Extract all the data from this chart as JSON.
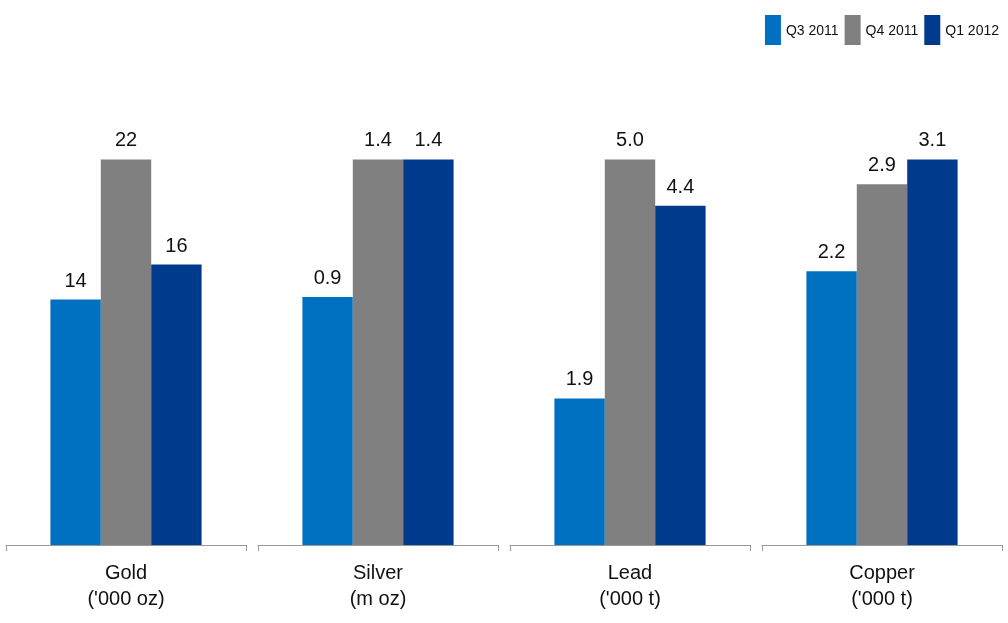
{
  "chart_data": [
    {
      "type": "bar",
      "categories": [
        "Gold\n('000 oz)"
      ],
      "data_labels": true,
      "series": [
        {
          "color": "#0070c0",
          "values": [
            14
          ],
          "value_labels": [
            "14"
          ]
        },
        {
          "color": "#808080",
          "values": [
            22
          ],
          "value_labels": [
            "22"
          ]
        },
        {
          "color": "#003a8c",
          "values": [
            16
          ],
          "value_labels": [
            "16"
          ]
        }
      ]
    },
    {
      "type": "bar",
      "categories": [
        "Silver\n(m oz)"
      ],
      "data_labels": true,
      "series": [
        {
          "color": "#0070c0",
          "values": [
            0.9
          ],
          "value_labels": [
            "0.9"
          ]
        },
        {
          "color": "#808080",
          "values": [
            1.4
          ],
          "value_labels": [
            "1.4"
          ]
        },
        {
          "color": "#003a8c",
          "values": [
            1.4
          ],
          "value_labels": [
            "1.4"
          ]
        }
      ]
    },
    {
      "type": "bar",
      "categories": [
        "Lead\n('000 t)"
      ],
      "data_labels": true,
      "series": [
        {
          "color": "#0070c0",
          "values": [
            1.9
          ],
          "value_labels": [
            "1.9"
          ]
        },
        {
          "color": "#808080",
          "values": [
            5.0
          ],
          "value_labels": [
            "5.0"
          ]
        },
        {
          "color": "#003a8c",
          "values": [
            4.4
          ],
          "value_labels": [
            "4.4"
          ]
        }
      ]
    },
    {
      "type": "bar",
      "categories": [
        "Copper\n('000 t)"
      ],
      "data_labels": true,
      "legend": "top right",
      "series": [
        {
          "name": "Q3 2011",
          "color": "#0070c0",
          "values": [
            2.2
          ],
          "value_labels": [
            "2.2"
          ]
        },
        {
          "name": "Q4 2011",
          "color": "#808080",
          "values": [
            2.9
          ],
          "value_labels": [
            "2.9"
          ]
        },
        {
          "name": "Q1 2012",
          "color": "#003a8c",
          "values": [
            3.1
          ],
          "value_labels": [
            "3.1"
          ]
        }
      ]
    }
  ]
}
